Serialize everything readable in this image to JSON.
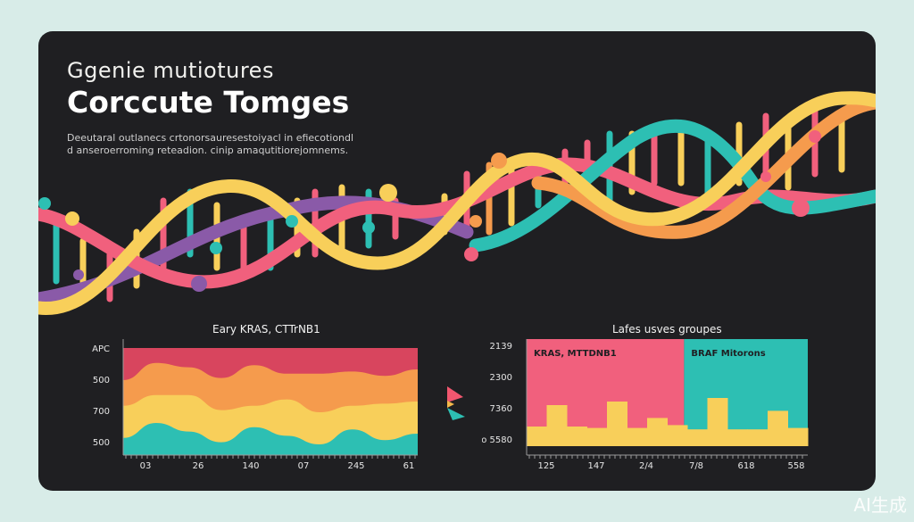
{
  "header": {
    "kicker": "Ggenie mutiotures",
    "title": "Corccute Tomges",
    "subtitle_line1": "Deeutaral outlanecs crtonorsauresestoiyacl in efiecotiondl",
    "subtitle_line2": "d anseroerroming reteadion. cinip amaqutitiorejomnems."
  },
  "watermark": "AI生成",
  "arrow_icon_colors": [
    "#f2576f",
    "#f4b84a",
    "#2dbfb3"
  ],
  "chart_data": [
    {
      "type": "area",
      "title": "Eary KRAS, CTTrNB1",
      "y_tick_labels": [
        "APC",
        "500",
        "700",
        "500"
      ],
      "x_tick_labels": [
        "03",
        "26",
        "140",
        "07",
        "245",
        "61"
      ],
      "ylim": [
        0,
        100
      ],
      "series": [
        {
          "color": "#2dbfb3",
          "values": [
            16,
            30,
            22,
            12,
            26,
            18,
            10,
            24,
            14,
            20
          ]
        },
        {
          "color": "#f8cf5a",
          "values": [
            30,
            26,
            34,
            30,
            20,
            34,
            30,
            22,
            34,
            30
          ]
        },
        {
          "color": "#f59b4d",
          "values": [
            24,
            30,
            26,
            30,
            38,
            24,
            36,
            32,
            26,
            30
          ]
        },
        {
          "color": "#d8455e",
          "values": [
            30,
            14,
            18,
            28,
            16,
            24,
            24,
            22,
            26,
            20
          ]
        }
      ]
    },
    {
      "type": "bar",
      "title": "Lafes usves groupes",
      "y_tick_labels": [
        "2139",
        "2300",
        "7360",
        "to 5580"
      ],
      "x_tick_labels": [
        "125",
        "147",
        "2/4",
        "7/8",
        "618",
        "558"
      ],
      "segments": [
        {
          "label": "KRAS, MTTDNB1",
          "color": "#f1607d"
        },
        {
          "label": "BRAF Mitorons",
          "color": "#2dbfb3"
        }
      ],
      "ylim": [
        0,
        100
      ],
      "bar_color": "#f8cf5a",
      "values": [
        10,
        40,
        10,
        8,
        45,
        8,
        22,
        12,
        6,
        50,
        6,
        6,
        32,
        8
      ]
    }
  ]
}
